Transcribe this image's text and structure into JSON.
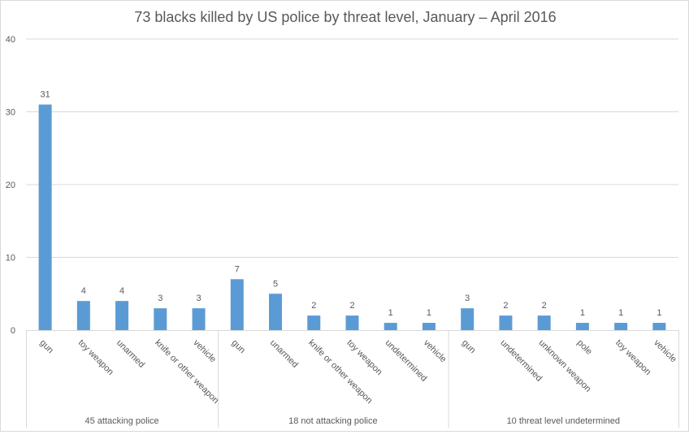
{
  "chart_data": {
    "type": "bar",
    "title": "73 blacks killed by US police by threat level, January – April 2016",
    "xlabel": "",
    "ylabel": "",
    "ylim": [
      0,
      40
    ],
    "yticks": [
      0,
      10,
      20,
      30,
      40
    ],
    "grid": true,
    "bar_color": "#5B9BD5",
    "groups": [
      {
        "label": "45 attacking police",
        "categories": [
          "gun",
          "toy weapon",
          "unarmed",
          "knife or other weapon",
          "vehicle"
        ],
        "values": [
          31,
          4,
          4,
          3,
          3
        ]
      },
      {
        "label": "18 not attacking police",
        "categories": [
          "gun",
          "unarmed",
          "knife or other weapon",
          "toy weapon",
          "undetermined",
          "vehicle"
        ],
        "values": [
          7,
          5,
          2,
          2,
          1,
          1
        ]
      },
      {
        "label": "10 threat level undetermined",
        "categories": [
          "gun",
          "undetermined",
          "unknown weapon",
          "pole",
          "toy weapon",
          "vehicle"
        ],
        "values": [
          3,
          2,
          2,
          1,
          1,
          1
        ]
      }
    ]
  }
}
